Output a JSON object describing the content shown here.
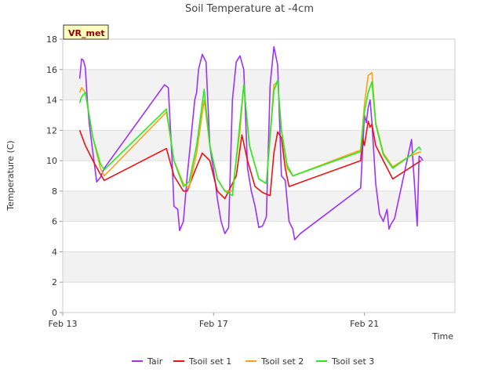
{
  "chart_data": {
    "type": "line",
    "title": "Soil Temperature at -4cm",
    "xlabel": "Time",
    "ylabel": "Temperature (C)",
    "ylim": [
      0,
      18
    ],
    "yticks": [
      0,
      2,
      4,
      6,
      8,
      10,
      12,
      14,
      16,
      18
    ],
    "xlim": [
      13,
      23.4
    ],
    "xticks": [
      {
        "value": 13,
        "label": "Feb 13"
      },
      {
        "value": 17,
        "label": "Feb 17"
      },
      {
        "value": 21,
        "label": "Feb 21"
      }
    ],
    "badge": "VR_met",
    "legend_position": "bottom",
    "series": [
      {
        "name": "Tair",
        "color": "#9b30ff",
        "x": [
          13.45,
          13.5,
          13.55,
          13.6,
          13.65,
          13.7,
          13.8,
          13.9,
          14.0,
          14.05,
          14.1,
          15.7,
          15.8,
          15.9,
          15.95,
          16.05,
          16.1,
          16.2,
          16.3,
          16.4,
          16.5,
          16.55,
          16.6,
          16.7,
          16.8,
          16.9,
          17.05,
          17.1,
          17.2,
          17.3,
          17.4,
          17.5,
          17.6,
          17.7,
          17.8,
          17.9,
          18.0,
          18.1,
          18.2,
          18.3,
          18.4,
          18.5,
          18.6,
          18.7,
          18.8,
          18.9,
          19.0,
          19.1,
          19.15,
          19.3,
          20.9,
          21.0,
          21.05,
          21.1,
          21.15,
          21.2,
          21.3,
          21.4,
          21.5,
          21.6,
          21.65,
          21.7,
          21.75,
          21.8,
          22.25,
          22.3,
          22.4,
          22.45,
          22.5,
          22.55
        ],
        "y": [
          15.4,
          16.7,
          16.6,
          16.1,
          14.0,
          12.5,
          10.5,
          8.6,
          8.9,
          9.2,
          9.5,
          15.0,
          14.8,
          10.0,
          7.0,
          6.8,
          5.4,
          6.0,
          9.0,
          11.5,
          14.0,
          14.5,
          16.0,
          17.0,
          16.5,
          11.0,
          8.5,
          7.5,
          6.0,
          5.2,
          5.6,
          14.0,
          16.5,
          16.9,
          16.0,
          9.5,
          8.0,
          7.0,
          5.6,
          5.7,
          6.3,
          15.0,
          17.5,
          16.3,
          9.0,
          8.7,
          6.0,
          5.5,
          4.8,
          5.2,
          8.2,
          13.0,
          12.5,
          13.5,
          14.0,
          12.5,
          8.5,
          6.5,
          6.0,
          6.8,
          5.5,
          5.8,
          6.0,
          6.2,
          11.4,
          9.5,
          5.7,
          10.3,
          10.2,
          10.0
        ]
      },
      {
        "name": "Tsoil set 1",
        "color": "#ee1111",
        "x": [
          13.45,
          13.6,
          13.8,
          14.0,
          14.05,
          14.1,
          15.75,
          15.95,
          16.2,
          16.3,
          16.5,
          16.7,
          16.9,
          17.1,
          17.3,
          17.6,
          17.75,
          17.9,
          18.1,
          18.3,
          18.5,
          18.6,
          18.7,
          18.8,
          18.9,
          19.0,
          20.9,
          20.95,
          21.0,
          21.1,
          21.15,
          21.2,
          21.3,
          21.5,
          21.75,
          22.5
        ],
        "y": [
          12.0,
          11.0,
          10.0,
          9.1,
          8.9,
          8.7,
          10.8,
          9.0,
          8.0,
          8.0,
          9.3,
          10.5,
          10.0,
          8.0,
          7.5,
          9.0,
          11.7,
          10.0,
          8.3,
          7.9,
          7.7,
          10.5,
          11.9,
          11.5,
          9.5,
          8.3,
          10.0,
          11.5,
          11.0,
          12.6,
          12.2,
          12.4,
          11.0,
          10.0,
          8.8,
          10.0
        ]
      },
      {
        "name": "Tsoil set 2",
        "color": "#ffa010",
        "x": [
          13.45,
          13.5,
          13.6,
          13.8,
          14.0,
          14.1,
          15.75,
          15.95,
          16.2,
          16.35,
          16.55,
          16.75,
          16.9,
          17.1,
          17.3,
          17.5,
          17.7,
          17.8,
          17.95,
          18.2,
          18.4,
          18.6,
          18.7,
          18.8,
          18.95,
          19.1,
          20.9,
          21.0,
          21.1,
          21.2,
          21.3,
          21.5,
          21.75,
          22.2,
          22.5
        ],
        "y": [
          14.5,
          14.8,
          14.5,
          11.5,
          9.5,
          9.0,
          13.2,
          10.0,
          8.5,
          8.2,
          10.5,
          14.0,
          11.0,
          8.8,
          8.0,
          8.0,
          12.0,
          15.0,
          11.0,
          8.8,
          8.5,
          15.0,
          15.2,
          12.0,
          9.5,
          9.0,
          10.7,
          13.7,
          15.6,
          15.8,
          12.5,
          10.5,
          9.6,
          10.3,
          10.6
        ]
      },
      {
        "name": "Tsoil set 3",
        "color": "#22ee22",
        "x": [
          13.45,
          13.5,
          13.6,
          13.8,
          14.0,
          14.1,
          15.75,
          15.95,
          16.2,
          16.35,
          16.55,
          16.75,
          16.9,
          17.1,
          17.3,
          17.5,
          17.7,
          17.8,
          17.95,
          18.2,
          18.4,
          18.6,
          18.7,
          18.8,
          18.95,
          19.1,
          20.9,
          21.0,
          21.1,
          21.2,
          21.3,
          21.5,
          21.75,
          22.2,
          22.45,
          22.5
        ],
        "y": [
          13.8,
          14.2,
          14.5,
          11.5,
          9.8,
          9.4,
          13.4,
          10.0,
          8.3,
          8.6,
          11.0,
          14.7,
          11.0,
          8.8,
          8.0,
          7.7,
          12.5,
          15.0,
          11.0,
          8.8,
          8.5,
          14.6,
          15.3,
          12.0,
          9.7,
          9.0,
          10.6,
          13.2,
          14.5,
          15.2,
          12.4,
          10.4,
          9.5,
          10.3,
          10.9,
          10.7
        ]
      }
    ]
  }
}
